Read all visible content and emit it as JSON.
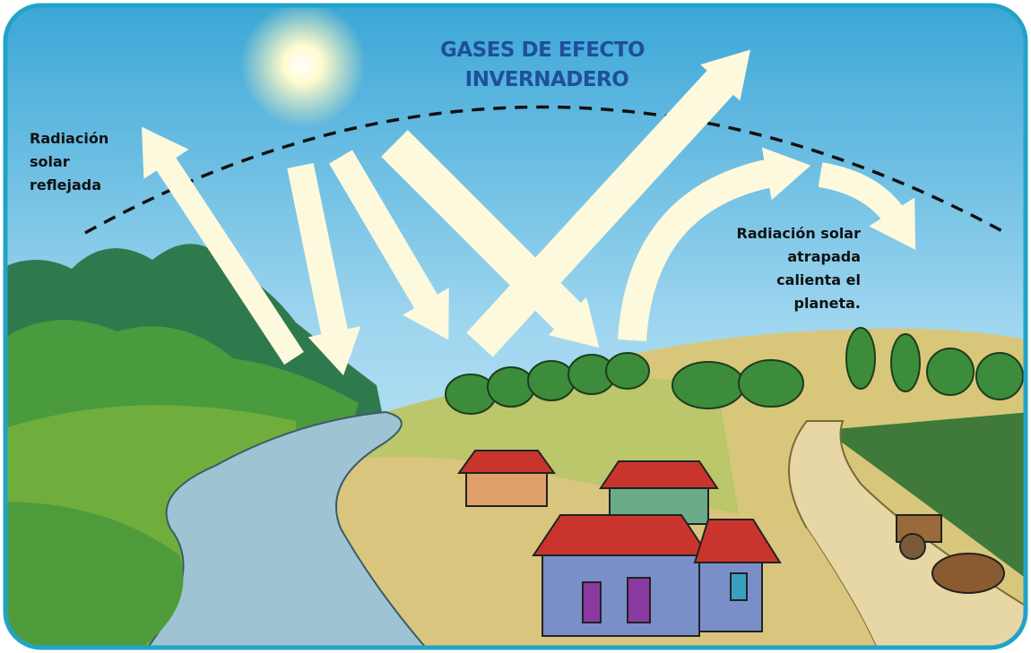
{
  "title": {
    "lines": [
      "GASES DE EFECTO",
      "INVERNADERO"
    ]
  },
  "labels": [
    {
      "lines": [
        "Radiación",
        "solar",
        "reflejada"
      ]
    },
    {
      "lines": [
        "Radiación solar",
        "atrapada",
        "calienta el",
        "planeta."
      ]
    }
  ]
}
